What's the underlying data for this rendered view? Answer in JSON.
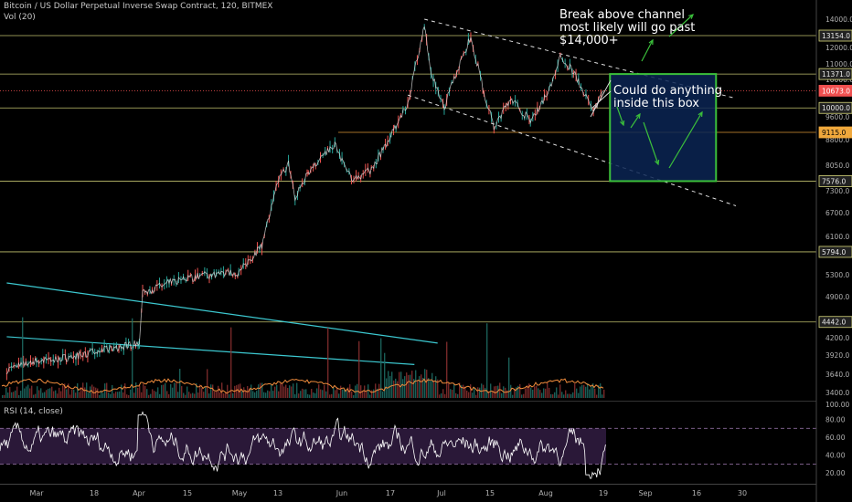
{
  "header": {
    "title": "Bitcoin / US Dollar Perpetual Inverse Swap Contract, 120, BITMEX",
    "volume_label": "Vol (20)"
  },
  "annotations": {
    "breakout": "Break above channel\nmost likely will go past\n$14,000+",
    "box": "Could do anything\ninside this box"
  },
  "colors": {
    "background": "#000000",
    "level_line": "#d6d67a",
    "support_orange": "#f0a83c",
    "current_price": "#f05050",
    "box_stroke": "#3bbf3b",
    "box_fill": "#0a2454",
    "arrow": "#3bbf3b",
    "trend_cyan": "#3cc8d0",
    "rsi_band": "#2a1838",
    "rsi_line": "#ffffff",
    "volume_ma": "#f08c3c"
  },
  "chart_data": {
    "type": "line",
    "title": "Bitcoin / US Dollar Perpetual Inverse Swap Contract, 120, BITMEX",
    "x_ticks": [
      "Mar",
      "18",
      "Apr",
      "15",
      "May",
      "13",
      "Jun",
      "17",
      "Jul",
      "15",
      "Aug",
      "19",
      "Sep",
      "16",
      "30"
    ],
    "y_ticks": [
      "14000.0",
      "12000.0",
      "11000.0",
      "10000.0",
      "9600.0",
      "8800.0",
      "8050.0",
      "7300.0",
      "6700.0",
      "6100.0",
      "5300.0",
      "4900.0",
      "4200.0",
      "3920.0",
      "3640.0",
      "3400.0"
    ],
    "y_scale": "log",
    "price_levels": [
      {
        "label": "13154.0",
        "value": 13154,
        "kind": "resistance"
      },
      {
        "label": "11371.0",
        "value": 11371,
        "kind": "resistance"
      },
      {
        "label": "10673.0",
        "value": 10673,
        "kind": "current"
      },
      {
        "label": "10000.0",
        "value": 10000,
        "kind": "level"
      },
      {
        "label": "9115.0",
        "value": 9115,
        "kind": "support"
      },
      {
        "label": "7576.0",
        "value": 7576,
        "kind": "support"
      },
      {
        "label": "5794.0",
        "value": 5794,
        "kind": "support"
      },
      {
        "label": "4442.0",
        "value": 4442,
        "kind": "support"
      }
    ],
    "price_path": [
      {
        "x": "2019-02-20",
        "y": 3700
      },
      {
        "x": "2019-03-01",
        "y": 3830
      },
      {
        "x": "2019-03-10",
        "y": 3880
      },
      {
        "x": "2019-03-20",
        "y": 3980
      },
      {
        "x": "2019-04-01",
        "y": 4100
      },
      {
        "x": "2019-04-02",
        "y": 4950
      },
      {
        "x": "2019-04-10",
        "y": 5150
      },
      {
        "x": "2019-04-20",
        "y": 5300
      },
      {
        "x": "2019-05-01",
        "y": 5350
      },
      {
        "x": "2019-05-08",
        "y": 5950
      },
      {
        "x": "2019-05-13",
        "y": 7600
      },
      {
        "x": "2019-05-16",
        "y": 8100
      },
      {
        "x": "2019-05-18",
        "y": 7100
      },
      {
        "x": "2019-05-22",
        "y": 7850
      },
      {
        "x": "2019-05-30",
        "y": 8700
      },
      {
        "x": "2019-06-04",
        "y": 7600
      },
      {
        "x": "2019-06-10",
        "y": 7900
      },
      {
        "x": "2019-06-16",
        "y": 9000
      },
      {
        "x": "2019-06-21",
        "y": 10200
      },
      {
        "x": "2019-06-26",
        "y": 13700
      },
      {
        "x": "2019-06-28",
        "y": 11400
      },
      {
        "x": "2019-07-02",
        "y": 10000
      },
      {
        "x": "2019-07-05",
        "y": 11200
      },
      {
        "x": "2019-07-10",
        "y": 13100
      },
      {
        "x": "2019-07-14",
        "y": 10600
      },
      {
        "x": "2019-07-17",
        "y": 9300
      },
      {
        "x": "2019-07-22",
        "y": 10400
      },
      {
        "x": "2019-07-28",
        "y": 9500
      },
      {
        "x": "2019-08-03",
        "y": 10800
      },
      {
        "x": "2019-08-06",
        "y": 12100
      },
      {
        "x": "2019-08-10",
        "y": 11500
      },
      {
        "x": "2019-08-13",
        "y": 10600
      },
      {
        "x": "2019-08-16",
        "y": 9800
      },
      {
        "x": "2019-08-19",
        "y": 10673
      }
    ],
    "channel_lines": [
      {
        "from": {
          "x": "2019-06-26",
          "y": 14000
        },
        "to": {
          "x": "2019-09-27",
          "y": 10400
        },
        "style": "dashed"
      },
      {
        "from": {
          "x": "2019-06-21",
          "y": 10500
        },
        "to": {
          "x": "2019-09-28",
          "y": 6900
        },
        "style": "dashed"
      }
    ],
    "trend_lines": [
      {
        "from": {
          "x": "2019-02-20",
          "y": 5150
        },
        "to": {
          "x": "2019-06-30",
          "y": 4100
        }
      },
      {
        "from": {
          "x": "2019-02-20",
          "y": 4200
        },
        "to": {
          "x": "2019-06-23",
          "y": 3780
        }
      }
    ],
    "projection_box": {
      "x_from": "2019-08-21",
      "x_to": "2019-09-22",
      "y_from": 7576,
      "y_to": 11371
    },
    "volume_panel": {
      "label": "Vol (20)",
      "y_ticks": []
    },
    "rsi_panel": {
      "label": "RSI (14, close)",
      "y_ticks": [
        "80.00",
        "60.00",
        "40.00",
        "20.00"
      ],
      "band": [
        30,
        70
      ],
      "ylim": [
        10,
        100
      ]
    }
  }
}
